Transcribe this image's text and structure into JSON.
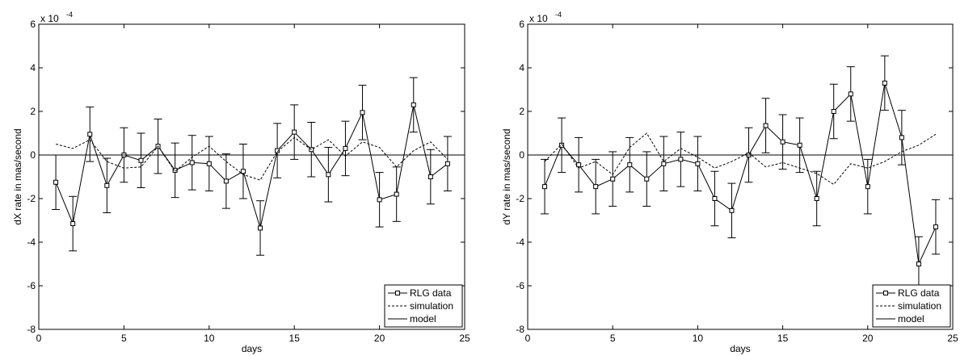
{
  "chart_data": [
    {
      "type": "line",
      "xlabel": "days",
      "ylabel": "dX rate in mas/second",
      "exponent_label": "x 10",
      "exponent_power": "-4",
      "xlim": [
        0,
        25
      ],
      "ylim": [
        -8,
        6
      ],
      "xticks": [
        0,
        5,
        10,
        15,
        20,
        25
      ],
      "yticks": [
        -8,
        -6,
        -4,
        -2,
        0,
        2,
        4,
        6
      ],
      "grid": false,
      "legend_position": "bottom-right",
      "x": [
        1,
        2,
        3,
        4,
        5,
        6,
        7,
        8,
        9,
        10,
        11,
        12,
        13,
        14,
        15,
        16,
        17,
        18,
        19,
        20,
        21,
        22,
        23,
        24
      ],
      "series": [
        {
          "name": "RLG data",
          "style": "solid-square-errorbar",
          "values": [
            -1.25,
            -3.15,
            0.95,
            -1.4,
            0.0,
            -0.25,
            0.4,
            -0.7,
            -0.35,
            -0.4,
            -1.2,
            -0.75,
            -3.35,
            0.2,
            1.05,
            0.25,
            -0.9,
            0.3,
            1.95,
            -2.05,
            -1.8,
            2.3,
            -1.0,
            -0.4
          ],
          "error": 1.25
        },
        {
          "name": "simulation",
          "style": "dashed",
          "values": [
            0.5,
            0.3,
            0.7,
            -0.3,
            -0.6,
            -0.55,
            0.4,
            -0.75,
            -0.1,
            0.4,
            -0.3,
            -0.9,
            -1.15,
            0.15,
            0.8,
            0.25,
            0.7,
            -0.05,
            0.6,
            0.35,
            -0.55,
            0.2,
            0.6,
            -0.2
          ]
        },
        {
          "name": "model",
          "style": "solid",
          "values": [
            0,
            0,
            0,
            0,
            0,
            0,
            0,
            0,
            0,
            0,
            0,
            0,
            0,
            0,
            0,
            0,
            0,
            0,
            0,
            0,
            0,
            0,
            0,
            0
          ]
        }
      ]
    },
    {
      "type": "line",
      "xlabel": "days",
      "ylabel": "dY rate in mas/second",
      "exponent_label": "x 10",
      "exponent_power": "-4",
      "xlim": [
        0,
        25
      ],
      "ylim": [
        -8,
        6
      ],
      "xticks": [
        0,
        5,
        10,
        15,
        20,
        25
      ],
      "yticks": [
        -8,
        -6,
        -4,
        -2,
        0,
        2,
        4,
        6
      ],
      "grid": false,
      "legend_position": "bottom-right",
      "x": [
        1,
        2,
        3,
        4,
        5,
        6,
        7,
        8,
        9,
        10,
        11,
        12,
        13,
        14,
        15,
        16,
        17,
        18,
        19,
        20,
        21,
        22,
        23,
        24
      ],
      "series": [
        {
          "name": "RLG data",
          "style": "solid-square-errorbar",
          "values": [
            -1.45,
            0.45,
            -0.45,
            -1.45,
            -1.1,
            -0.45,
            -1.1,
            -0.4,
            -0.2,
            -0.4,
            -2.0,
            -2.55,
            0.0,
            1.35,
            0.6,
            0.45,
            -2.0,
            2.0,
            2.8,
            -1.45,
            3.3,
            0.8,
            -5.0,
            -3.3
          ],
          "error": 1.25
        },
        {
          "name": "simulation",
          "style": "dashed",
          "values": [
            -0.3,
            0.5,
            -0.6,
            -0.3,
            -0.9,
            0.35,
            1.0,
            -0.3,
            0.3,
            -0.1,
            -0.6,
            -0.3,
            0.1,
            -0.55,
            -0.35,
            -0.6,
            -0.85,
            -1.35,
            -0.4,
            -0.6,
            -0.3,
            0.15,
            0.45,
            0.95
          ]
        },
        {
          "name": "model",
          "style": "solid",
          "values": [
            0,
            0,
            0,
            0,
            0,
            0,
            0,
            0,
            0,
            0,
            0,
            0,
            0,
            0,
            0,
            0,
            0,
            0,
            0,
            0,
            0,
            0,
            0,
            0
          ]
        }
      ]
    }
  ]
}
